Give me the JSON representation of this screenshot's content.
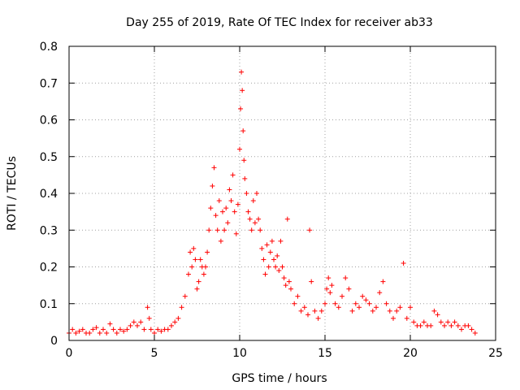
{
  "chart_data": {
    "type": "scatter",
    "title": "Day 255 of 2019, Rate Of TEC Index for receiver ab33",
    "xlabel": "GPS time / hours",
    "ylabel": "ROTI / TECUs",
    "xlim": [
      0,
      25
    ],
    "ylim": [
      0,
      0.8
    ],
    "xticks": [
      0,
      5,
      10,
      15,
      20,
      25
    ],
    "yticks": [
      0,
      0.1,
      0.2,
      0.3,
      0.4,
      0.5,
      0.6,
      0.7,
      0.8
    ],
    "grid": true,
    "marker": "+",
    "color": "#ff0000",
    "series": [
      {
        "name": "ab33",
        "x": [
          0.0,
          0.2,
          0.4,
          0.6,
          0.8,
          1.0,
          1.2,
          1.4,
          1.6,
          1.8,
          2.0,
          2.2,
          2.4,
          2.6,
          2.8,
          3.0,
          3.2,
          3.4,
          3.6,
          3.8,
          4.0,
          4.2,
          4.4,
          4.6,
          4.7,
          4.8,
          5.0,
          5.2,
          5.4,
          5.6,
          5.8,
          6.0,
          6.2,
          6.4,
          6.6,
          6.8,
          7.0,
          7.1,
          7.2,
          7.3,
          7.4,
          7.5,
          7.6,
          7.7,
          7.8,
          7.9,
          8.0,
          8.1,
          8.2,
          8.3,
          8.4,
          8.5,
          8.6,
          8.7,
          8.8,
          8.9,
          9.0,
          9.1,
          9.2,
          9.3,
          9.4,
          9.5,
          9.6,
          9.7,
          9.8,
          9.9,
          10.0,
          10.05,
          10.1,
          10.15,
          10.2,
          10.25,
          10.3,
          10.4,
          10.5,
          10.6,
          10.7,
          10.8,
          10.9,
          11.0,
          11.1,
          11.2,
          11.3,
          11.4,
          11.5,
          11.6,
          11.7,
          11.8,
          11.9,
          12.0,
          12.1,
          12.2,
          12.3,
          12.4,
          12.5,
          12.6,
          12.7,
          12.8,
          12.9,
          13.0,
          13.2,
          13.4,
          13.6,
          13.8,
          14.0,
          14.1,
          14.2,
          14.4,
          14.6,
          14.8,
          15.0,
          15.1,
          15.2,
          15.3,
          15.4,
          15.6,
          15.8,
          16.0,
          16.2,
          16.4,
          16.6,
          16.8,
          17.0,
          17.2,
          17.4,
          17.6,
          17.8,
          18.0,
          18.2,
          18.4,
          18.6,
          18.8,
          19.0,
          19.2,
          19.4,
          19.6,
          19.8,
          20.0,
          20.2,
          20.4,
          20.6,
          20.8,
          21.0,
          21.2,
          21.4,
          21.6,
          21.8,
          22.0,
          22.2,
          22.4,
          22.6,
          22.8,
          23.0,
          23.2,
          23.4,
          23.6,
          23.8
        ],
        "y": [
          0.02,
          0.03,
          0.02,
          0.025,
          0.03,
          0.02,
          0.02,
          0.03,
          0.035,
          0.02,
          0.03,
          0.02,
          0.045,
          0.03,
          0.02,
          0.03,
          0.025,
          0.03,
          0.04,
          0.05,
          0.04,
          0.05,
          0.03,
          0.09,
          0.06,
          0.03,
          0.02,
          0.03,
          0.025,
          0.03,
          0.03,
          0.04,
          0.05,
          0.06,
          0.09,
          0.12,
          0.18,
          0.24,
          0.2,
          0.25,
          0.22,
          0.14,
          0.16,
          0.22,
          0.2,
          0.18,
          0.2,
          0.24,
          0.3,
          0.36,
          0.42,
          0.47,
          0.34,
          0.3,
          0.38,
          0.27,
          0.35,
          0.3,
          0.36,
          0.32,
          0.41,
          0.38,
          0.45,
          0.35,
          0.29,
          0.37,
          0.52,
          0.63,
          0.73,
          0.68,
          0.57,
          0.49,
          0.44,
          0.4,
          0.35,
          0.33,
          0.3,
          0.38,
          0.32,
          0.4,
          0.33,
          0.3,
          0.25,
          0.22,
          0.18,
          0.26,
          0.2,
          0.24,
          0.27,
          0.22,
          0.2,
          0.23,
          0.19,
          0.27,
          0.2,
          0.17,
          0.15,
          0.33,
          0.16,
          0.14,
          0.1,
          0.12,
          0.08,
          0.09,
          0.07,
          0.3,
          0.16,
          0.08,
          0.06,
          0.08,
          0.1,
          0.14,
          0.17,
          0.13,
          0.15,
          0.1,
          0.09,
          0.12,
          0.17,
          0.14,
          0.08,
          0.1,
          0.09,
          0.12,
          0.11,
          0.1,
          0.08,
          0.09,
          0.13,
          0.16,
          0.1,
          0.08,
          0.06,
          0.08,
          0.09,
          0.21,
          0.06,
          0.09,
          0.05,
          0.04,
          0.04,
          0.05,
          0.04,
          0.04,
          0.08,
          0.07,
          0.05,
          0.04,
          0.05,
          0.04,
          0.05,
          0.04,
          0.03,
          0.04,
          0.04,
          0.03,
          0.02
        ]
      }
    ]
  }
}
